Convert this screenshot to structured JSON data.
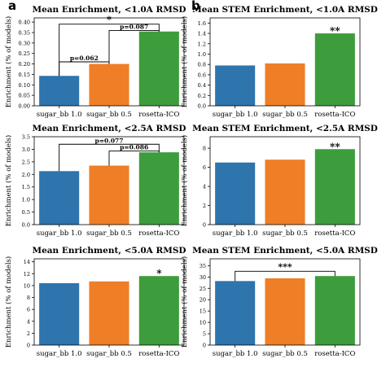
{
  "panel_letters": [
    "a",
    "b"
  ],
  "colors": {
    "series": [
      "#2e74ad",
      "#ef7e26",
      "#3d9d3c"
    ],
    "axis": "#000000"
  },
  "chart_data": [
    {
      "type": "bar",
      "title": "Mean Enrichment, <1.0A RMSD",
      "ylabel": "Enrichment (% of models)",
      "categories": [
        "sugar_bb 1.0",
        "sugar_bb 0.5",
        "rosetta-ICO"
      ],
      "values": [
        0.143,
        0.2,
        0.355
      ],
      "ylim": [
        0,
        0.42
      ],
      "yticks": [
        0.0,
        0.05,
        0.1,
        0.15,
        0.2,
        0.25,
        0.3,
        0.35,
        0.4
      ],
      "ytick_labels": [
        "0.00",
        "0.05",
        "0.10",
        "0.15",
        "0.20",
        "0.25",
        "0.30",
        "0.35",
        "0.40"
      ],
      "bar_colors": [
        "#2e74ad",
        "#ef7e26",
        "#3d9d3c"
      ],
      "grid": false,
      "annotations": [
        {
          "type": "bracket",
          "from": 0,
          "to": 2,
          "y": 0.39,
          "label": "*"
        },
        {
          "type": "bracket",
          "from": 1,
          "to": 2,
          "y": 0.36,
          "label": "p=0.087"
        },
        {
          "type": "bracket",
          "from": 0,
          "to": 1,
          "y": 0.21,
          "label": "p=0.062"
        }
      ]
    },
    {
      "type": "bar",
      "title": "Mean STEM Enrichment, <1.0A RMSD",
      "ylabel": "Enrichment (% of models)",
      "categories": [
        "sugar_bb 1.0",
        "sugar_bb 0.5",
        "rosetta-ICO"
      ],
      "values": [
        0.78,
        0.82,
        1.4
      ],
      "ylim": [
        0,
        1.7
      ],
      "yticks": [
        0.0,
        0.2,
        0.4,
        0.6,
        0.8,
        1.0,
        1.2,
        1.4,
        1.6
      ],
      "ytick_labels": [
        "0.0",
        "0.2",
        "0.4",
        "0.6",
        "0.8",
        "1.0",
        "1.2",
        "1.4",
        "1.6"
      ],
      "bar_colors": [
        "#2e74ad",
        "#ef7e26",
        "#3d9d3c"
      ],
      "grid": false,
      "annotations": [
        {
          "type": "star",
          "bar": 2,
          "label": "**"
        }
      ]
    },
    {
      "type": "bar",
      "title": "Mean Enrichment, <2.5A RMSD",
      "ylabel": "Enrichment (% of models)",
      "categories": [
        "sugar_bb 1.0",
        "sugar_bb 0.5",
        "rosetta-ICO"
      ],
      "values": [
        2.13,
        2.35,
        2.88
      ],
      "ylim": [
        0,
        3.5
      ],
      "yticks": [
        0.0,
        0.5,
        1.0,
        1.5,
        2.0,
        2.5,
        3.0,
        3.5
      ],
      "ytick_labels": [
        "0.0",
        "0.5",
        "1.0",
        "1.5",
        "2.0",
        "2.5",
        "3.0",
        "3.5"
      ],
      "bar_colors": [
        "#2e74ad",
        "#ef7e26",
        "#3d9d3c"
      ],
      "grid": false,
      "annotations": [
        {
          "type": "bracket",
          "from": 0,
          "to": 2,
          "y": 3.2,
          "label": "p=0.077"
        },
        {
          "type": "bracket",
          "from": 1,
          "to": 2,
          "y": 2.93,
          "label": "p=0.086"
        }
      ]
    },
    {
      "type": "bar",
      "title": "Mean STEM Enrichment, <2.5A RMSD",
      "ylabel": "Enrichment (% of models)",
      "categories": [
        "sugar_bb 1.0",
        "sugar_bb 0.5",
        "rosetta-ICO"
      ],
      "values": [
        6.5,
        6.8,
        7.9
      ],
      "ylim": [
        0,
        9.2
      ],
      "yticks": [
        0,
        2,
        4,
        6,
        8
      ],
      "ytick_labels": [
        "0",
        "2",
        "4",
        "6",
        "8"
      ],
      "bar_colors": [
        "#2e74ad",
        "#ef7e26",
        "#3d9d3c"
      ],
      "grid": false,
      "annotations": [
        {
          "type": "star",
          "bar": 2,
          "label": "**"
        }
      ]
    },
    {
      "type": "bar",
      "title": "Mean Enrichment, <5.0A RMSD",
      "ylabel": "Enrichment (% of models)",
      "categories": [
        "sugar_bb 1.0",
        "sugar_bb 0.5",
        "rosetta-ICO"
      ],
      "values": [
        10.4,
        10.7,
        11.6
      ],
      "ylim": [
        0,
        14.5
      ],
      "yticks": [
        0,
        2,
        4,
        6,
        8,
        10,
        12,
        14
      ],
      "ytick_labels": [
        "0",
        "2",
        "4",
        "6",
        "8",
        "10",
        "12",
        "14"
      ],
      "bar_colors": [
        "#2e74ad",
        "#ef7e26",
        "#3d9d3c"
      ],
      "grid": false,
      "annotations": [
        {
          "type": "star",
          "bar": 2,
          "label": "*"
        }
      ]
    },
    {
      "type": "bar",
      "title": "Mean STEM Enrichment, <5.0A RMSD",
      "ylabel": "Enrichment (% of models)",
      "categories": [
        "sugar_bb 1.0",
        "sugar_bb 0.5",
        "rosetta-ICO"
      ],
      "values": [
        28.2,
        29.4,
        30.4
      ],
      "ylim": [
        0,
        38
      ],
      "yticks": [
        0,
        5,
        10,
        15,
        20,
        25,
        30,
        35
      ],
      "ytick_labels": [
        "0",
        "5",
        "10",
        "15",
        "20",
        "25",
        "30",
        "35"
      ],
      "bar_colors": [
        "#2e74ad",
        "#ef7e26",
        "#3d9d3c"
      ],
      "grid": false,
      "annotations": [
        {
          "type": "bracket",
          "from": 0,
          "to": 2,
          "y": 32.5,
          "label": "***"
        }
      ]
    }
  ]
}
